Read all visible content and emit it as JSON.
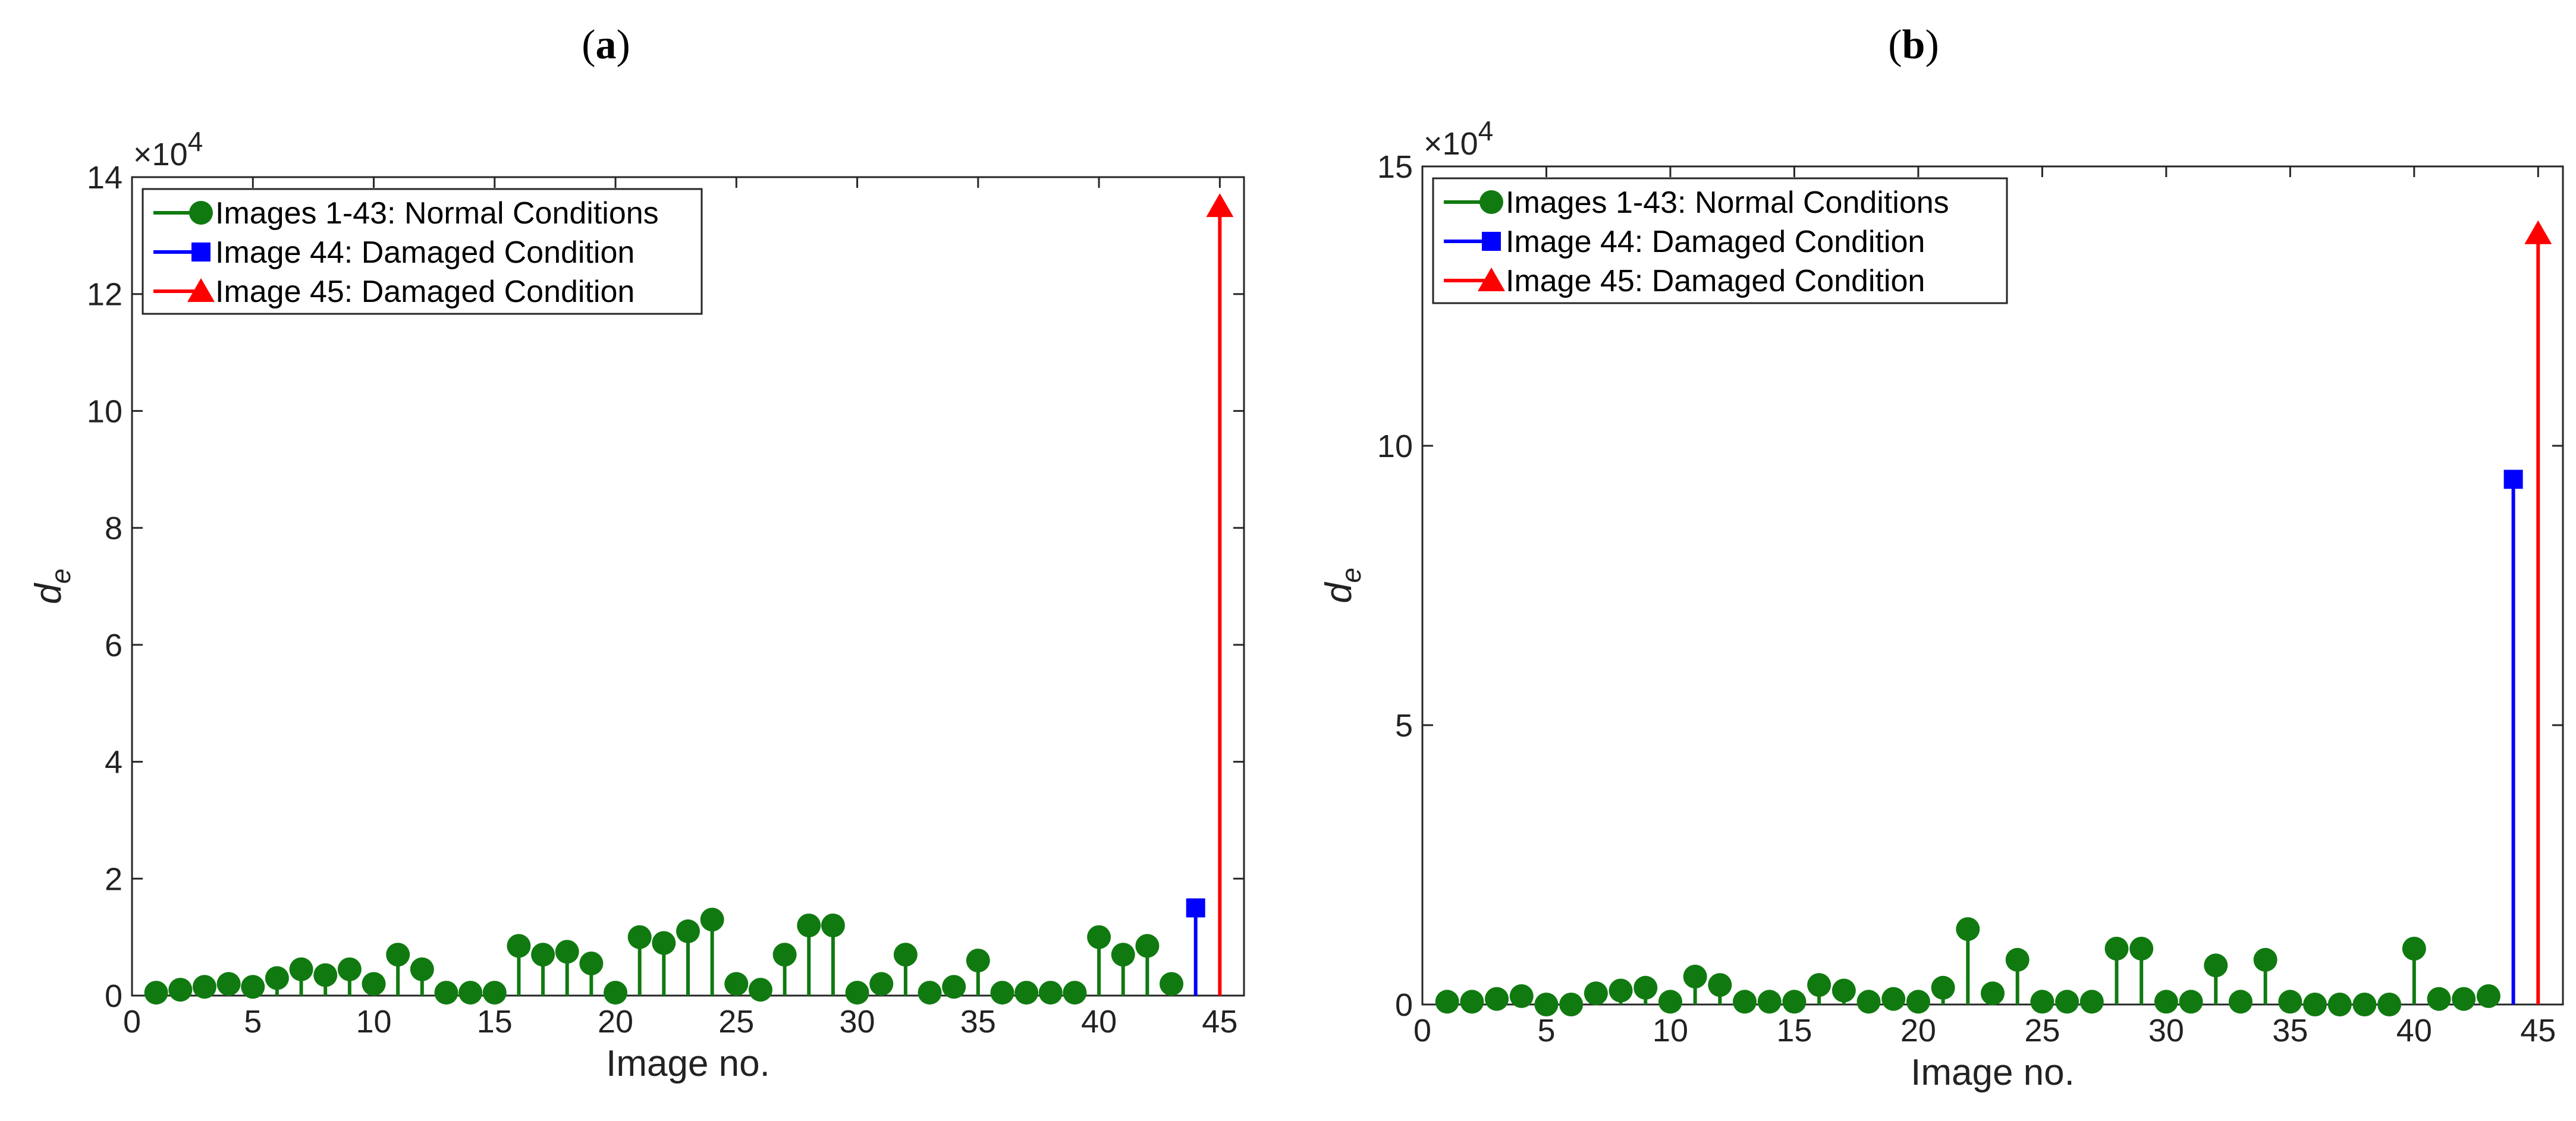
{
  "chart_data": [
    {
      "type": "stem",
      "panel_label": "a",
      "xlabel": "Image no.",
      "ylabel": "d",
      "ylabel_subscript": "e",
      "y_multiplier": "×10",
      "y_multiplier_exponent": "4",
      "xlim": [
        0,
        46
      ],
      "ylim": [
        0,
        14
      ],
      "xticks": [
        0,
        5,
        10,
        15,
        20,
        25,
        30,
        35,
        40,
        45
      ],
      "yticks": [
        0,
        2,
        4,
        6,
        8,
        10,
        12,
        14
      ],
      "legend_position": "top-left",
      "series": [
        {
          "name": "Images 1-43: Normal Conditions",
          "color": "#107a10",
          "marker": "circle",
          "x": [
            1,
            2,
            3,
            4,
            5,
            6,
            7,
            8,
            9,
            10,
            11,
            12,
            13,
            14,
            15,
            16,
            17,
            18,
            19,
            20,
            21,
            22,
            23,
            24,
            25,
            26,
            27,
            28,
            29,
            30,
            31,
            32,
            33,
            34,
            35,
            36,
            37,
            38,
            39,
            40,
            41,
            42,
            43
          ],
          "values": [
            0.05,
            0.1,
            0.15,
            0.2,
            0.15,
            0.3,
            0.45,
            0.35,
            0.45,
            0.2,
            0.7,
            0.45,
            0.05,
            0.05,
            0.05,
            0.85,
            0.7,
            0.75,
            0.55,
            0.05,
            1.0,
            0.9,
            1.1,
            1.3,
            0.2,
            0.1,
            0.7,
            1.2,
            1.2,
            0.05,
            0.2,
            0.7,
            0.05,
            0.15,
            0.6,
            0.05,
            0.05,
            0.05,
            0.05,
            1.0,
            0.7,
            0.85,
            0.2
          ]
        },
        {
          "name": "Image 44: Damaged Condition",
          "color": "#0000ff",
          "marker": "square",
          "x": [
            44
          ],
          "values": [
            1.5
          ]
        },
        {
          "name": "Image 45: Damaged Condition",
          "color": "#ff0000",
          "marker": "triangle",
          "x": [
            45
          ],
          "values": [
            13.5
          ]
        }
      ]
    },
    {
      "type": "stem",
      "panel_label": "b",
      "xlabel": "Image no.",
      "ylabel": "d",
      "ylabel_subscript": "e",
      "y_multiplier": "×10",
      "y_multiplier_exponent": "4",
      "xlim": [
        0,
        46
      ],
      "ylim": [
        0,
        15
      ],
      "xticks": [
        0,
        5,
        10,
        15,
        20,
        25,
        30,
        35,
        40,
        45
      ],
      "yticks": [
        0,
        5,
        10,
        15
      ],
      "legend_position": "top-left",
      "series": [
        {
          "name": "Images 1-43: Normal Conditions",
          "color": "#107a10",
          "marker": "circle",
          "x": [
            1,
            2,
            3,
            4,
            5,
            6,
            7,
            8,
            9,
            10,
            11,
            12,
            13,
            14,
            15,
            16,
            17,
            18,
            19,
            20,
            21,
            22,
            23,
            24,
            25,
            26,
            27,
            28,
            29,
            30,
            31,
            32,
            33,
            34,
            35,
            36,
            37,
            38,
            39,
            40,
            41,
            42,
            43
          ],
          "values": [
            0.05,
            0.05,
            0.1,
            0.15,
            0.0,
            0.0,
            0.2,
            0.25,
            0.3,
            0.05,
            0.5,
            0.35,
            0.05,
            0.05,
            0.05,
            0.35,
            0.25,
            0.05,
            0.1,
            0.05,
            0.3,
            1.35,
            0.2,
            0.8,
            0.05,
            0.05,
            0.05,
            1.0,
            1.0,
            0.05,
            0.05,
            0.7,
            0.05,
            0.8,
            0.05,
            0.0,
            0.0,
            0.0,
            0.0,
            1.0,
            0.1,
            0.1,
            0.15
          ]
        },
        {
          "name": "Image 44: Damaged Condition",
          "color": "#0000ff",
          "marker": "square",
          "x": [
            44
          ],
          "values": [
            9.4
          ]
        },
        {
          "name": "Image 45: Damaged Condition",
          "color": "#ff0000",
          "marker": "triangle",
          "x": [
            45
          ],
          "values": [
            13.8
          ]
        }
      ]
    }
  ]
}
